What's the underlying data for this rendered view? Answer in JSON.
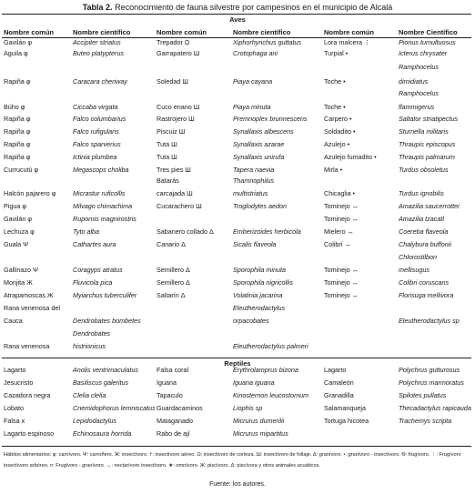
{
  "title": {
    "label": "Tabla 2.",
    "text": "Reconocimiento de fauna silvestre por campesinos en el municipio de Alcalá"
  },
  "sections": {
    "birds": "Aves",
    "reptiles": "Reptiles"
  },
  "headers": [
    "Nombre común",
    "Nombre científico",
    "Nombre común",
    "Nombre científico",
    "Nombre común",
    "Nombre Científico"
  ],
  "rows": [
    {
      "y": 46,
      "c": [
        "Gavilán φ",
        "Accipiter striatus",
        "Trepador Ω",
        "Xiphorhynchus guttatus",
        "Lora malcera ⋮",
        "Pionus tumultuosus"
      ]
    },
    {
      "y": 58,
      "c": [
        "Aguila φ",
        "Buteo platypterus",
        "Garrapatero Ш",
        "Crotophaga ani",
        "Turpial •",
        "Icterus chrysater"
      ]
    },
    {
      "y": 73,
      "c": [
        "",
        "",
        "",
        "",
        "",
        "Ramphocelus"
      ]
    },
    {
      "y": 89,
      "c": [
        "Rapiña φ",
        "Caracara cheriway",
        "Soledad Ш",
        "Piaya cayana",
        "Toche •",
        "dimidiatus"
      ]
    },
    {
      "y": 102,
      "c": [
        "",
        "",
        "",
        "",
        "",
        "Ramphocelus"
      ]
    },
    {
      "y": 117,
      "c": [
        "Búho φ",
        "Ciccaba virgata",
        "Cuco enano Ш",
        "Piaya minuta",
        "Toche •",
        "flammigerus"
      ]
    },
    {
      "y": 130,
      "c": [
        "Rapiña φ",
        "Falco columbarius",
        "Rastrojero Ш",
        "Premnoplex brunnescens",
        "Carpero •",
        "Saltator striatipectus"
      ]
    },
    {
      "y": 144,
      "c": [
        "Rapiña φ",
        "Falco rufigularis",
        "Piscuiz Ш",
        "Synallaxis albescens",
        "Soldadito •",
        "Sturnella militaris"
      ]
    },
    {
      "y": 158,
      "c": [
        "Rapiña φ",
        "Falco sparverius",
        "Tuta Ш",
        "Synallaxis azarae",
        "Azulejo •",
        "Thraupis episcopus"
      ]
    },
    {
      "y": 172,
      "c": [
        "Rapiña φ",
        "Ictinia plumbea",
        "Tuta Ш",
        "Synallaxis unirufa",
        "Azulejo fumadito •",
        "Thraupis palmarum"
      ]
    },
    {
      "y": 186,
      "c": [
        "Currucutú φ",
        "Megascops choliba",
        "Tres pies Ш",
        "Tapera naevia",
        "Mirla •",
        "Turdus obsoletus"
      ]
    },
    {
      "y": 198,
      "c": [
        "",
        "",
        "Batarás",
        "Thamnophilus",
        "",
        ""
      ]
    },
    {
      "y": 212,
      "c": [
        "Halcón pajarero φ",
        "Micrastur ruficollis",
        "carcajada Ш",
        "multistriatus",
        "Chicaglia •",
        "Turdus ignobilis"
      ]
    },
    {
      "y": 226,
      "c": [
        "Pigua φ",
        "Milvago chimachima",
        "Cucarachero Ш",
        "Troglodytes aedon",
        "Tominejo ↔",
        "Amazilia saucerrottei"
      ]
    },
    {
      "y": 240,
      "c": [
        "Gavilán φ",
        "Rupornis magnirostris",
        "",
        "",
        "Tominejo ↔",
        "Amazilia tzacatl"
      ]
    },
    {
      "y": 254,
      "c": [
        "Lechuza φ",
        "Tyto alba",
        "Sabanero collado Δ",
        "Emberizoides herbicola",
        "Mielero ↔",
        "Coereba flaveola"
      ]
    },
    {
      "y": 268,
      "c": [
        "Guala Ψ",
        "Cathartes aura",
        "Canario Δ",
        "Sicalis flaveola",
        "Colibrí ↔",
        "Chalybura buffonii"
      ]
    },
    {
      "y": 282,
      "c": [
        "",
        "",
        "",
        "",
        "",
        "Chlorostilbon"
      ]
    },
    {
      "y": 296,
      "c": [
        "Gallinazo Ψ",
        "Coragyps atratus",
        "Semillero Δ",
        "Sporophila minuta",
        "Tominejo ↔",
        "mellisugus"
      ]
    },
    {
      "y": 310,
      "c": [
        "Monjita Ж",
        "Fluvicola pica",
        "Semillero Δ",
        "Sporophila nigricollis",
        "Tominejo ↔",
        "Colibri coruscans"
      ]
    },
    {
      "y": 324,
      "c": [
        "Atrapamoscas Ж",
        "Myiarchus tuberculifer",
        "Saltarín Δ",
        "Volatinia jacarina",
        "Tominejo ↔",
        "Florisuga mellivora"
      ]
    }
  ],
  "amphibians": [
    {
      "y": 338,
      "c": [
        "Rana venenosa del",
        "",
        "",
        "Eleutherodactylus",
        "",
        ""
      ]
    },
    {
      "y": 352,
      "c": [
        "Cauca",
        "Dendrobates bombetes",
        "",
        "orpacobates",
        "",
        "Eleutherodactylus sp"
      ]
    },
    {
      "y": 366,
      "c": [
        "",
        "Dendrobates",
        "",
        "",
        "",
        ""
      ]
    },
    {
      "y": 380,
      "c": [
        "Rana venenosa",
        "histrionicus",
        "",
        "Eleutherodactylus palmeri",
        "",
        ""
      ]
    }
  ],
  "reptile_rows": [
    {
      "y": 406,
      "c": [
        "Lagarto",
        "Anolis ventrimaculatus",
        "Falsa coral",
        "Erythrolamprus bizona",
        "Lagarto",
        "Polychrus gutturosus"
      ]
    },
    {
      "y": 420,
      "c": [
        "Jesucristo",
        "Basiliscus galeritus",
        "Iguana",
        "Iguana iguana",
        "Camaleón",
        "Polychrus marmoratus"
      ]
    },
    {
      "y": 434,
      "c": [
        "Cazadora negra",
        "Clelia clelia",
        "Tapaculo",
        "Kinosternon leucostomum",
        "Granadilla",
        "Spilotes pullatus"
      ]
    },
    {
      "y": 448,
      "c": [
        "Lobato",
        "Cnemidophorus lemniscatus",
        "Guardacaminos",
        "Liophis sp",
        "Salamanqueja",
        "Thecadactylus rapicauda"
      ]
    },
    {
      "y": 462,
      "c": [
        "Falsa x",
        "Lepidodactylus",
        "Mataganado",
        "Micrurus dumerilii",
        "Tortuga hicotea",
        "Trachemys scripta"
      ]
    },
    {
      "y": 476,
      "c": [
        "Lagarto espinoso",
        "Echinosaura horrida",
        "Rabo de ají",
        "Micrurus mipartitus",
        "",
        ""
      ]
    }
  ],
  "footnote": "Hábitos alimentarios: φ: carnívoro. Ψ: carroñero. Ж: insectívoro. †: insectívoro aéreo. Ω: insectívoro de corteza. Ш: insectívoro de follaje. Δ: granívoro. •: granívoro - insectívoro. Ѳ: frugívoro. ⋮: Frugívoro insectívoro arbóreo. ¤: Frugívoro - granívoro. ↔: nectarívoro insectívoro. ★: omnívoro. Ж: piscívoro. Δ: piscívora y otros animales acuáticos.",
  "source": "Fuente: los autores."
}
